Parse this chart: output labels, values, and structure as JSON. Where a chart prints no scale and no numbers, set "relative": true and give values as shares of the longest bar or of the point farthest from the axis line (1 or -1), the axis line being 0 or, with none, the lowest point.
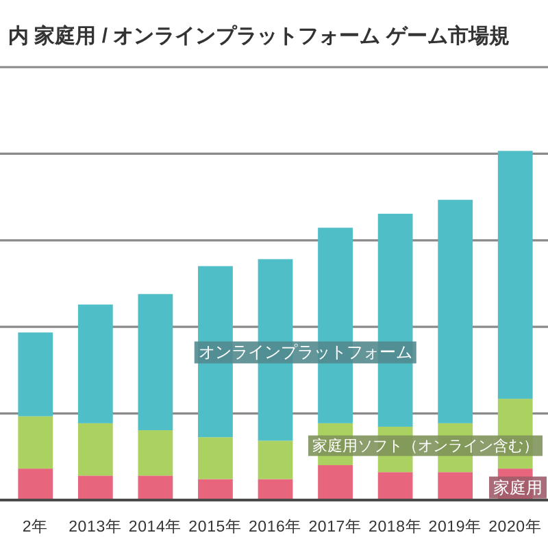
{
  "chart_data": {
    "type": "bar",
    "title": "内 家庭用 / オンラインプラットフォーム ゲーム市場規",
    "categories": [
      "2年",
      "2013年",
      "2014年",
      "2015年",
      "2016年",
      "2017年",
      "2018年",
      "2019年",
      "2020年"
    ],
    "stacked": true,
    "relative": true,
    "grid": "y",
    "series": [
      {
        "name": "家庭用",
        "color": "#e8657e",
        "values": [
          0.09,
          0.07,
          0.07,
          0.06,
          0.06,
          0.1,
          0.08,
          0.08,
          0.09
        ]
      },
      {
        "name": "家庭用ソフト（オンライン含む）",
        "color": "#abd160",
        "values": [
          0.15,
          0.15,
          0.13,
          0.12,
          0.11,
          0.12,
          0.13,
          0.14,
          0.2
        ]
      },
      {
        "name": "オンラインプラットフォーム",
        "color": "#4fbec7",
        "values": [
          0.24,
          0.34,
          0.39,
          0.49,
          0.52,
          0.56,
          0.61,
          0.64,
          0.71
        ]
      }
    ]
  }
}
